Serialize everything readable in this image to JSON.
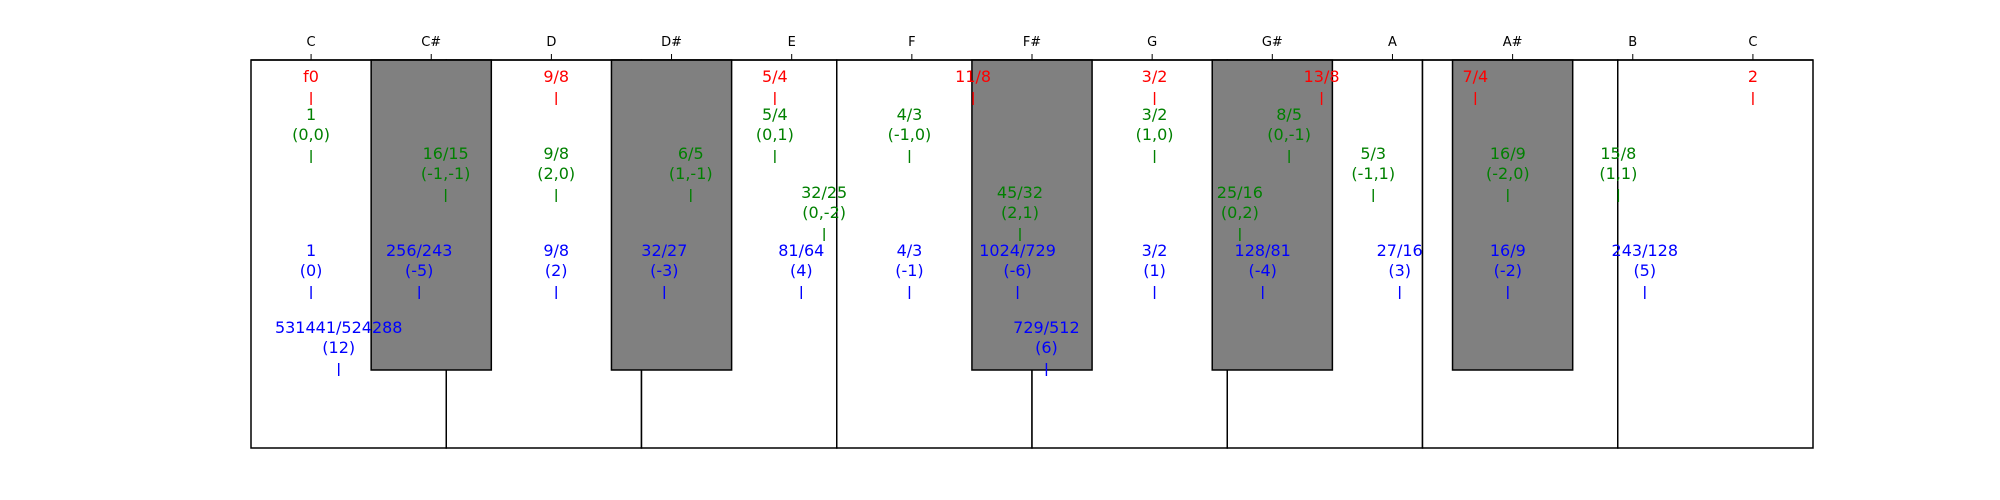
{
  "colors": {
    "background": "#ffffff",
    "white_key": "#ffffff",
    "black_key": "#808080",
    "outline": "#000000",
    "harmonic": "#ff0000",
    "just": "#008000",
    "pythagorean": "#0000ff"
  },
  "keyboard": {
    "note_labels": [
      "C",
      "C#",
      "D",
      "D#",
      "E",
      "F",
      "F#",
      "G",
      "G#",
      "A",
      "A#",
      "B",
      "C"
    ],
    "black_keys": [
      "C#",
      "D#",
      "F#",
      "G#",
      "A#"
    ]
  },
  "annotations": {
    "harmonic": [
      {
        "text": [
          "f0"
        ],
        "pos": 0
      },
      {
        "text": [
          "9/8"
        ],
        "pos": 2.04
      },
      {
        "text": [
          "5/4"
        ],
        "pos": 3.86
      },
      {
        "text": [
          "11/8"
        ],
        "pos": 5.51
      },
      {
        "text": [
          "3/2"
        ],
        "pos": 7.02
      },
      {
        "text": [
          "13/8"
        ],
        "pos": 8.41
      },
      {
        "text": [
          "7/4"
        ],
        "pos": 9.69
      },
      {
        "text": [
          "2"
        ],
        "pos": 12
      }
    ],
    "just": [
      {
        "text": [
          "1",
          "(0,0)"
        ],
        "pos": 0,
        "level": 0
      },
      {
        "text": [
          "16/15",
          "(-1,-1)"
        ],
        "pos": 1.12,
        "level": 1
      },
      {
        "text": [
          "9/8",
          "(2,0)"
        ],
        "pos": 2.04,
        "level": 1
      },
      {
        "text": [
          "6/5",
          "(1,-1)"
        ],
        "pos": 3.16,
        "level": 1
      },
      {
        "text": [
          "5/4",
          "(0,1)"
        ],
        "pos": 3.86,
        "level": 0
      },
      {
        "text": [
          "32/25",
          "(0,-2)"
        ],
        "pos": 4.27,
        "level": 2
      },
      {
        "text": [
          "4/3",
          "(-1,0)"
        ],
        "pos": 4.98,
        "level": 0
      },
      {
        "text": [
          "45/32",
          "(2,1)"
        ],
        "pos": 5.9,
        "level": 2
      },
      {
        "text": [
          "3/2",
          "(1,0)"
        ],
        "pos": 7.02,
        "level": 0
      },
      {
        "text": [
          "25/16",
          "(0,2)"
        ],
        "pos": 7.73,
        "level": 2
      },
      {
        "text": [
          "8/5",
          "(0,-1)"
        ],
        "pos": 8.14,
        "level": 0
      },
      {
        "text": [
          "5/3",
          "(-1,1)"
        ],
        "pos": 8.84,
        "level": 1
      },
      {
        "text": [
          "16/9",
          "(-2,0)"
        ],
        "pos": 9.96,
        "level": 1
      },
      {
        "text": [
          "15/8",
          "(1,1)"
        ],
        "pos": 10.88,
        "level": 1
      }
    ],
    "pythagorean": [
      {
        "text": [
          "1",
          "(0)"
        ],
        "pos": 0,
        "level": 0
      },
      {
        "text": [
          "531441/524288",
          "(12)"
        ],
        "pos": 0.23,
        "level": 1
      },
      {
        "text": [
          "256/243",
          "(-5)"
        ],
        "pos": 0.9,
        "level": 0
      },
      {
        "text": [
          "9/8",
          "(2)"
        ],
        "pos": 2.04,
        "level": 0
      },
      {
        "text": [
          "32/27",
          "(-3)"
        ],
        "pos": 2.94,
        "level": 0
      },
      {
        "text": [
          "81/64",
          "(4)"
        ],
        "pos": 4.08,
        "level": 0
      },
      {
        "text": [
          "4/3",
          "(-1)"
        ],
        "pos": 4.98,
        "level": 0
      },
      {
        "text": [
          "1024/729",
          "(-6)"
        ],
        "pos": 5.88,
        "level": 0
      },
      {
        "text": [
          "729/512",
          "(6)"
        ],
        "pos": 6.12,
        "level": 1
      },
      {
        "text": [
          "3/2",
          "(1)"
        ],
        "pos": 7.02,
        "level": 0
      },
      {
        "text": [
          "128/81",
          "(-4)"
        ],
        "pos": 7.92,
        "level": 0
      },
      {
        "text": [
          "27/16",
          "(3)"
        ],
        "pos": 9.06,
        "level": 0
      },
      {
        "text": [
          "16/9",
          "(-2)"
        ],
        "pos": 9.96,
        "level": 0
      },
      {
        "text": [
          "243/128",
          "(5)"
        ],
        "pos": 11.1,
        "level": 0
      }
    ]
  }
}
